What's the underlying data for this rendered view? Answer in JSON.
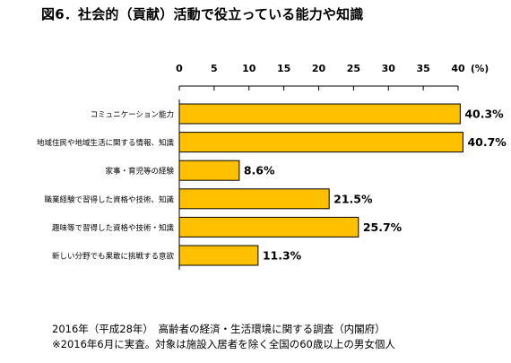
{
  "title": "図6．社会的（貢献）活動で役立っている能力や知識",
  "footnote_source": "2016年（平成28年）　高齢者の経済・生活環境に関する調査（内閣府）",
  "footnote_note": "※2016年6月に実査。対象は施設入居者を除く全国の60歳以上の男女個人",
  "colors": {
    "bar": "#ffc000",
    "bar_stroke": "#000000"
  },
  "chart_data": {
    "type": "bar",
    "orientation": "horizontal",
    "axis_position": "top",
    "unit_label": "(%)",
    "xlim": [
      0,
      40
    ],
    "ticks": [
      "0",
      "5",
      "10",
      "15",
      "20",
      "25",
      "30",
      "35",
      "40"
    ],
    "categories": [
      "コミュニケーション能力",
      "地域住民や地域生活に関する情報、知識",
      "家事・育児等の経験",
      "職業経験で習得した資格や技術、知識",
      "趣味等で習得した資格や技術・知識",
      "新しい分野でも果敢に挑戦する意欲"
    ],
    "values": [
      40.3,
      40.7,
      8.6,
      21.5,
      25.7,
      11.3
    ],
    "value_labels": [
      "40.3%",
      "40.7%",
      "8.6%",
      "21.5%",
      "25.7%",
      "11.3%"
    ]
  }
}
